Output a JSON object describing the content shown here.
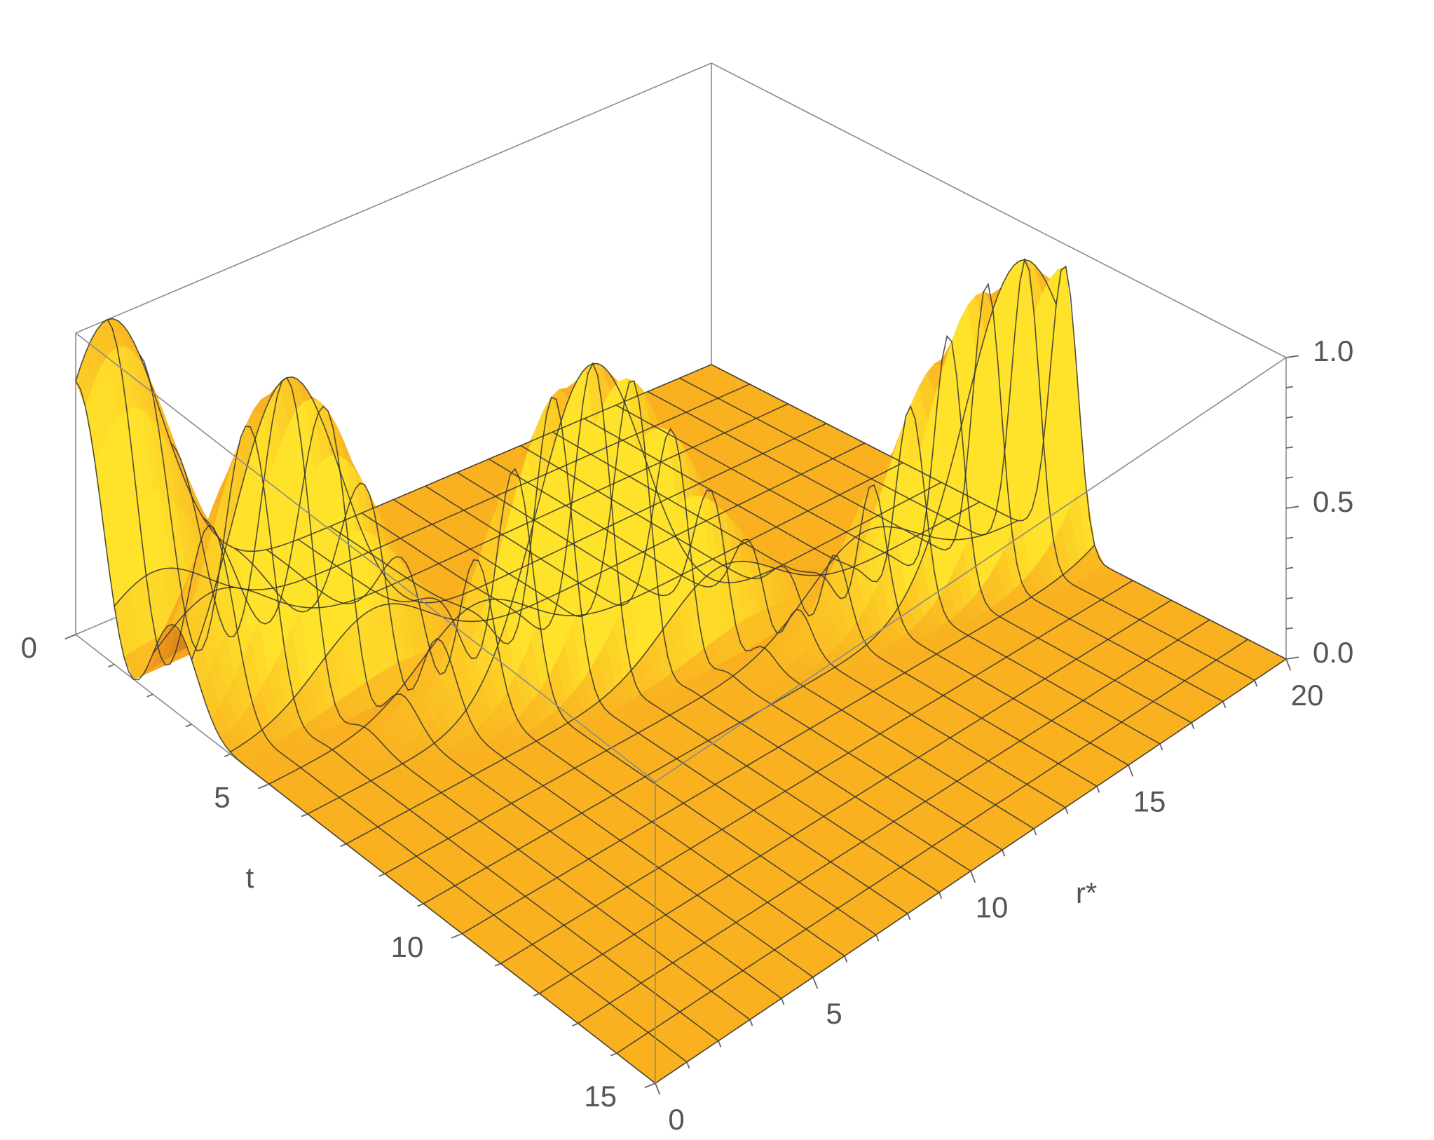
{
  "chart_data": {
    "type": "surface3d",
    "title": "",
    "function": "exp(-((r* - 0.22 t^2 - 1)/2.4)^2) * cos(pi * t / 3)^2",
    "axes": {
      "t": {
        "label": "t",
        "range": [
          0,
          15
        ],
        "ticks": [
          0,
          5,
          10,
          15
        ]
      },
      "r": {
        "label": "r*",
        "range": [
          0,
          20
        ],
        "ticks": [
          0,
          5,
          10,
          15,
          20
        ]
      },
      "z": {
        "label": "",
        "range": [
          0,
          1
        ],
        "ticks": [
          "0.0",
          "0.5",
          "1.0"
        ]
      }
    },
    "mesh": {
      "t_lines": 15,
      "r_lines": 20
    },
    "colors": {
      "surface_light": "#ffe22a",
      "surface_mid": "#f7a11d",
      "surface_dark": "#7a3a08",
      "box": "#8a8a8a",
      "text": "#555555"
    },
    "grid": false,
    "legend": "none"
  }
}
